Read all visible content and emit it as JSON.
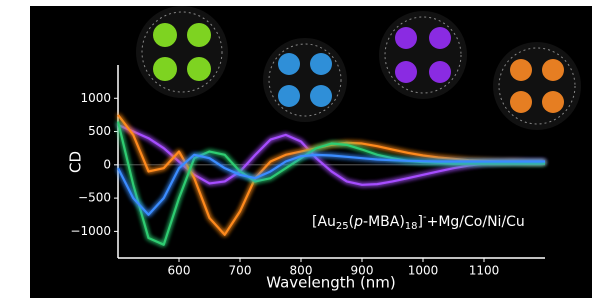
{
  "chart_data": {
    "type": "line",
    "x_label": "Wavelength (nm)",
    "y_label": "CD",
    "annotation": {
      "parts": [
        "[Au",
        "25",
        "(",
        "p",
        "-MBA)",
        "18",
        "]",
        "-",
        "+Mg/Co/Ni/Cu"
      ]
    },
    "x": [
      500,
      525,
      550,
      575,
      600,
      625,
      650,
      675,
      700,
      725,
      750,
      775,
      800,
      825,
      850,
      875,
      900,
      925,
      950,
      975,
      1000,
      1025,
      1050,
      1075,
      1100,
      1125,
      1150,
      1175,
      1200
    ],
    "series": [
      {
        "color": "#a64dff",
        "values": [
          600,
          500,
          400,
          250,
          50,
          -150,
          -280,
          -250,
          -100,
          150,
          380,
          450,
          350,
          100,
          -100,
          -250,
          -300,
          -290,
          -250,
          -200,
          -150,
          -100,
          -50,
          -10,
          20,
          30,
          40,
          40,
          40
        ]
      },
      {
        "color": "#ff8a1f",
        "values": [
          750,
          450,
          -100,
          -50,
          200,
          -200,
          -800,
          -1050,
          -700,
          -200,
          50,
          150,
          200,
          250,
          300,
          330,
          320,
          280,
          230,
          180,
          140,
          110,
          90,
          70,
          60,
          50,
          50,
          40,
          40
        ]
      },
      {
        "color": "#2ecc71",
        "values": [
          650,
          -300,
          -1100,
          -1200,
          -500,
          100,
          200,
          150,
          -100,
          -250,
          -200,
          -50,
          100,
          250,
          320,
          300,
          230,
          150,
          100,
          60,
          40,
          30,
          20,
          20,
          20,
          20,
          20,
          20,
          20
        ]
      },
      {
        "color": "#3a8cff",
        "values": [
          -50,
          -500,
          -750,
          -500,
          -50,
          150,
          100,
          -50,
          -150,
          -200,
          -100,
          50,
          130,
          150,
          140,
          120,
          100,
          80,
          70,
          60,
          55,
          50,
          50,
          50,
          50,
          50,
          50,
          50,
          50
        ]
      }
    ],
    "xlim": [
      500,
      1200
    ],
    "ylim": [
      -1400,
      1500
    ],
    "xticks": [
      600,
      700,
      800,
      900,
      1000,
      1100
    ],
    "yticks": [
      1000,
      500,
      0,
      {
        "value": -500,
        "label": "−500"
      },
      {
        "value": -1000,
        "label": "−1000"
      }
    ]
  }
}
